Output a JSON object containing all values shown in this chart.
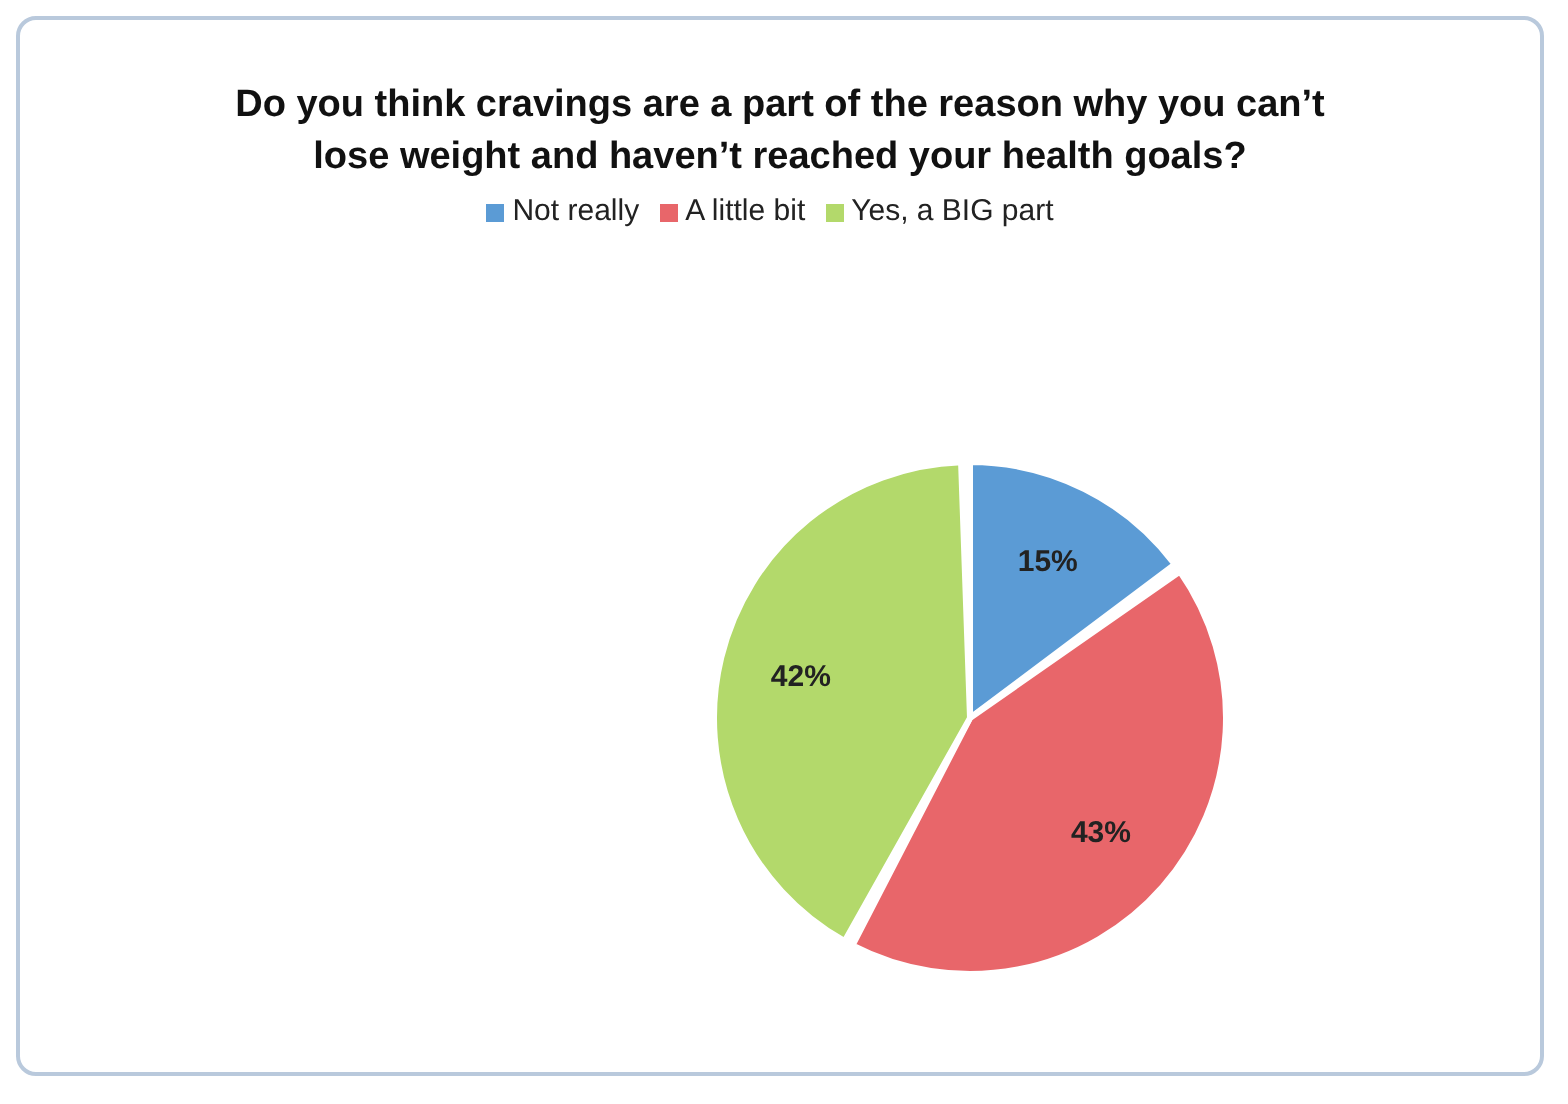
{
  "chart_data": {
    "type": "pie",
    "title": "Do you think cravings are a part of the reason why you can’t lose weight and haven’t reached your health goals?",
    "categories": [
      "Not really",
      "A little bit",
      "Yes, a BIG part"
    ],
    "values": [
      15,
      43,
      42
    ],
    "value_labels": [
      "15%",
      "43%",
      "42%"
    ],
    "colors": [
      "#5b9bd5",
      "#e8666a",
      "#b3d96b"
    ],
    "legend": "top"
  }
}
